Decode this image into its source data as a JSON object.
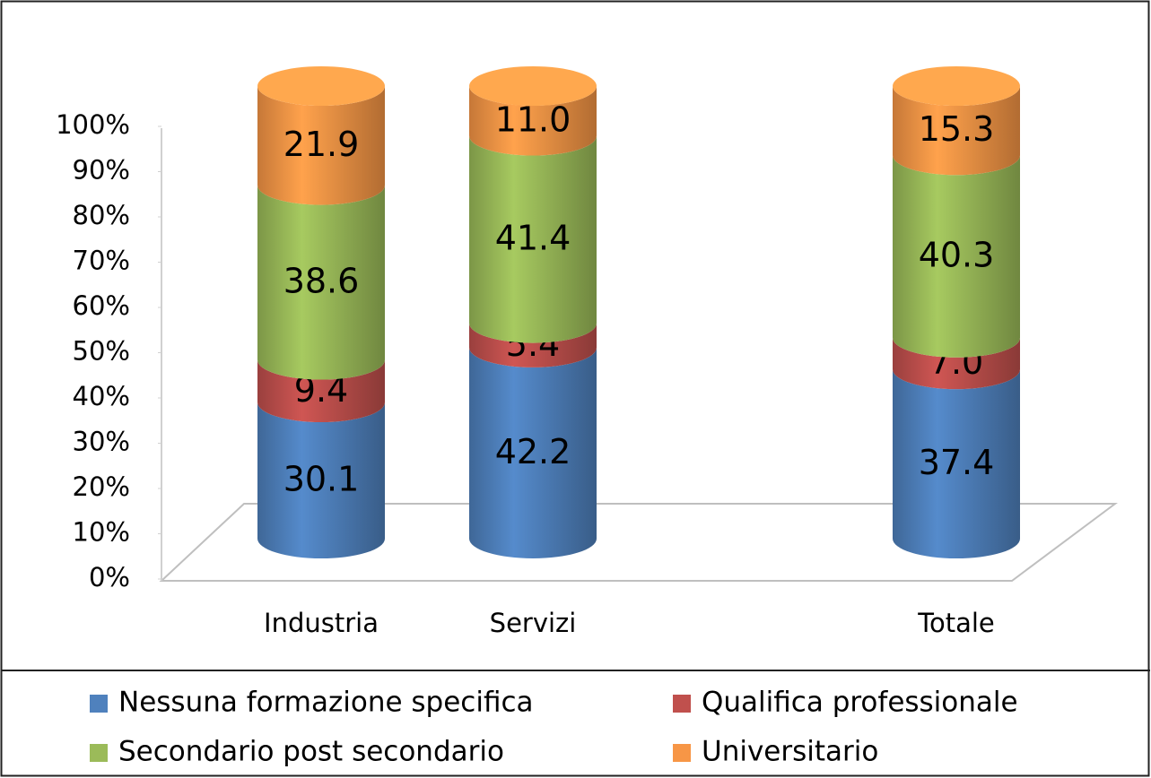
{
  "chart_data": {
    "type": "stacked-cylinder",
    "categories": [
      "Industria",
      "Servizi",
      null,
      "Totale"
    ],
    "series": [
      {
        "name": "Nessuna formazione specifica",
        "color": "#4f81bd",
        "values": [
          30.1,
          42.2,
          null,
          37.4
        ],
        "value_labels": [
          "30.1",
          "42.2",
          null,
          "37.4"
        ]
      },
      {
        "name": "Qualifica professionale",
        "color": "#c0504d",
        "values": [
          9.4,
          5.4,
          null,
          7.0
        ],
        "value_labels": [
          "9.4",
          "5.4",
          null,
          "7.0"
        ]
      },
      {
        "name": "Secondario post secondario",
        "color": "#9bbb59",
        "values": [
          38.6,
          41.4,
          null,
          40.3
        ],
        "value_labels": [
          "38.6",
          "41.4",
          null,
          "40.3"
        ]
      },
      {
        "name": "Universitario",
        "color": "#f79646",
        "values": [
          21.9,
          11.0,
          null,
          15.3
        ],
        "value_labels": [
          "21.9",
          "11.0",
          null,
          "15.3"
        ]
      }
    ],
    "ylim": [
      0,
      100
    ],
    "yticks": [
      {
        "value": 0,
        "label": "0%"
      },
      {
        "value": 10,
        "label": "10%"
      },
      {
        "value": 20,
        "label": "20%"
      },
      {
        "value": 30,
        "label": "30%"
      },
      {
        "value": 40,
        "label": "40%"
      },
      {
        "value": 50,
        "label": "50%"
      },
      {
        "value": 60,
        "label": "60%"
      },
      {
        "value": 70,
        "label": "70%"
      },
      {
        "value": 80,
        "label": "80%"
      },
      {
        "value": 90,
        "label": "90%"
      },
      {
        "value": 100,
        "label": "100%"
      }
    ],
    "legend": "bottom"
  }
}
